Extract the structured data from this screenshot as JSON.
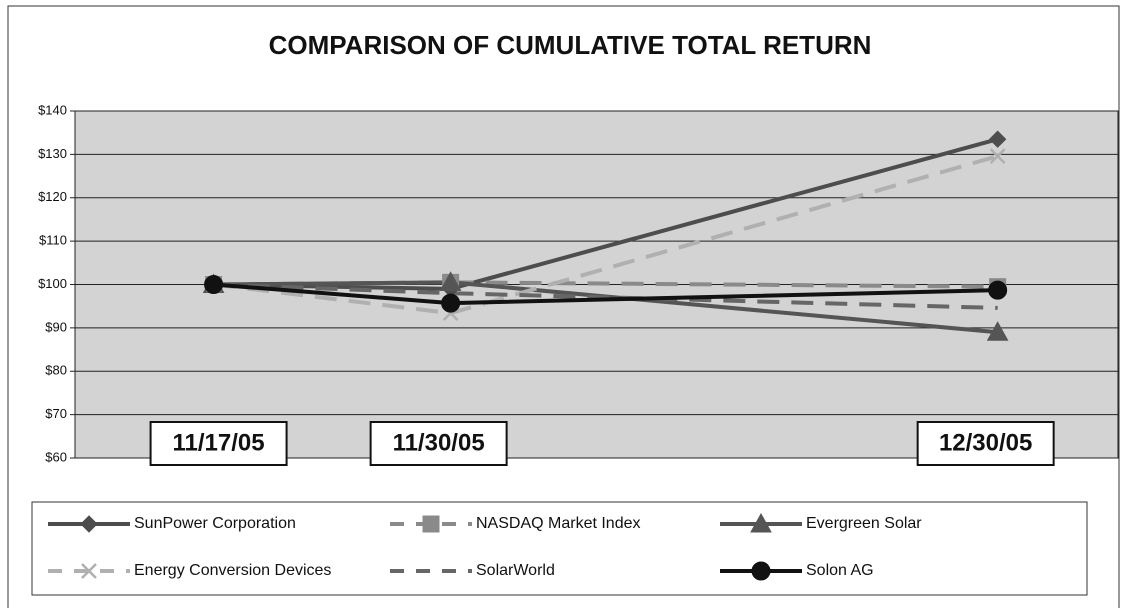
{
  "chart_data": {
    "type": "line",
    "title": "COMPARISON OF CUMULATIVE TOTAL RETURN",
    "x": [
      "11/17/05",
      "11/30/05",
      "12/30/05"
    ],
    "ylim": [
      60,
      140
    ],
    "yticks": [
      {
        "value": 60,
        "label": "$60"
      },
      {
        "value": 70,
        "label": "$70"
      },
      {
        "value": 80,
        "label": "$80"
      },
      {
        "value": 90,
        "label": "$90"
      },
      {
        "value": 100,
        "label": "$100"
      },
      {
        "value": 110,
        "label": "$110"
      },
      {
        "value": 120,
        "label": "$120"
      },
      {
        "value": 130,
        "label": "$130"
      },
      {
        "value": 140,
        "label": "$140"
      }
    ],
    "grid": true,
    "legend": "bottom",
    "series": [
      {
        "name": "SunPower Corporation",
        "color": "#4d4d4d",
        "marker": "diamond",
        "dashed": false,
        "values": [
          100,
          99,
          133.5
        ]
      },
      {
        "name": "NASDAQ Market Index",
        "color": "#8a8a8a",
        "marker": "square",
        "dashed": true,
        "values": [
          100,
          100.5,
          99.5
        ]
      },
      {
        "name": "Evergreen Solar",
        "color": "#555555",
        "marker": "triangle",
        "dashed": false,
        "values": [
          100,
          100.5,
          89
        ]
      },
      {
        "name": "Energy Conversion Devices",
        "color": "#b0b0b0",
        "marker": "x",
        "dashed": true,
        "values": [
          100,
          93.4,
          129.6
        ]
      },
      {
        "name": "SolarWorld",
        "color": "#666666",
        "marker": "none",
        "dashed": true,
        "values": [
          100,
          98,
          94.6
        ]
      },
      {
        "name": "Solon AG",
        "color": "#111111",
        "marker": "circle",
        "dashed": false,
        "values": [
          100,
          95.7,
          98.7
        ]
      }
    ]
  }
}
